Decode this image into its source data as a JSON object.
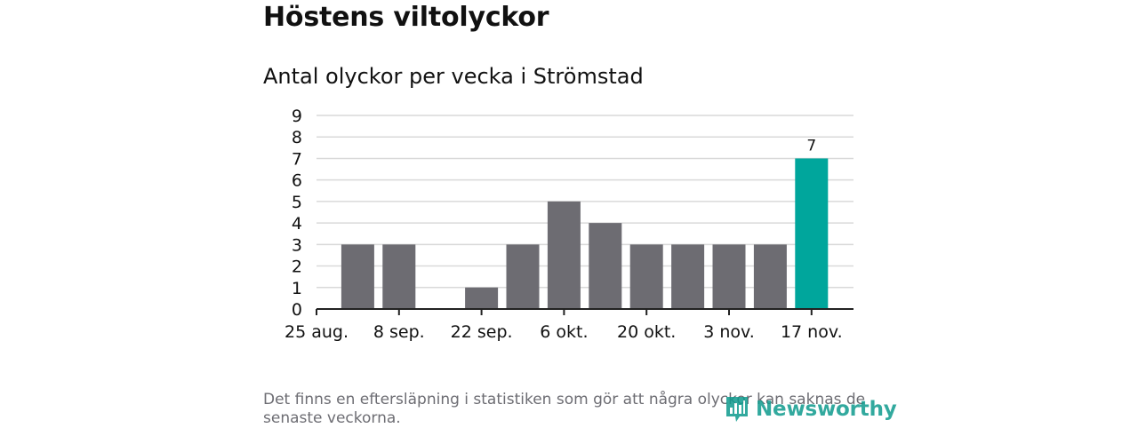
{
  "header": {
    "title": "Höstens viltolyckor",
    "subtitle": "Antal olyckor per vecka i Strömstad"
  },
  "footnote": "Det finns en eftersläpning i statistiken som gör att några olyckor kan saknas de senaste veckorna.",
  "brand": {
    "logo_text": "Newsworthy",
    "icon": "bar-chart-speech-bubble-icon",
    "color": "#0f9b8e"
  },
  "colors": {
    "bar": "#6d6c72",
    "highlight": "#00a69c",
    "grid": "#d9d9d9"
  },
  "chart_data": {
    "type": "bar",
    "title": "Antal olyckor per vecka i Strömstad",
    "xlabel": "",
    "ylabel": "",
    "ylim": [
      0,
      9
    ],
    "yticks": [
      0,
      1,
      2,
      3,
      4,
      5,
      6,
      7,
      8,
      9
    ],
    "grid": true,
    "x_tick_labels": [
      "25 aug.",
      "8 sep.",
      "22 sep.",
      "6 okt.",
      "20 okt.",
      "3 nov.",
      "17 nov."
    ],
    "x_tick_positions": [
      0,
      2,
      4,
      6,
      8,
      10,
      12
    ],
    "bars": [
      {
        "week": 1,
        "value": 3
      },
      {
        "week": 2,
        "value": 3
      },
      {
        "week": 3,
        "value": 0
      },
      {
        "week": 4,
        "value": 1
      },
      {
        "week": 5,
        "value": 3
      },
      {
        "week": 6,
        "value": 5
      },
      {
        "week": 7,
        "value": 4
      },
      {
        "week": 8,
        "value": 3
      },
      {
        "week": 9,
        "value": 3
      },
      {
        "week": 10,
        "value": 3
      },
      {
        "week": 11,
        "value": 3
      },
      {
        "week": 12,
        "value": 7,
        "highlight": true
      }
    ],
    "data_labels": [
      {
        "week": 12,
        "label": "7"
      }
    ]
  }
}
